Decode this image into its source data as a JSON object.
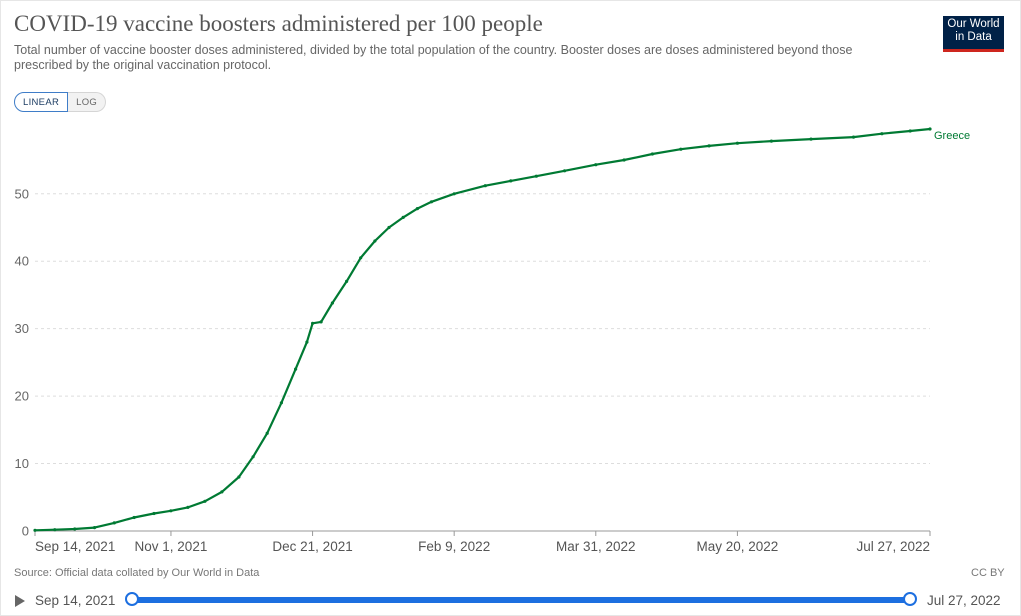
{
  "header": {
    "title": "COVID-19 vaccine boosters administered per 100 people",
    "subtitle": "Total number of vaccine booster doses administered, divided by the total population of the country. Booster doses are doses administered beyond those prescribed by the original vaccination protocol.",
    "logo_line1": "Our World",
    "logo_line2": "in Data"
  },
  "scale_toggle": {
    "linear_label": "LINEAR",
    "log_label": "LOG",
    "selected": "linear"
  },
  "footer": {
    "source": "Source: Official data collated by Our World in Data",
    "license": "CC BY"
  },
  "timeline": {
    "start_label": "Sep 14, 2021",
    "end_label": "Jul 27, 2022"
  },
  "colors": {
    "series": "#007a33",
    "grid": "#dddddd",
    "accent": "#1d6fe0",
    "logo_bg": "#002147",
    "logo_bar": "#ce261e"
  },
  "chart_data": {
    "type": "line",
    "title": "COVID-19 vaccine boosters administered per 100 people",
    "xlabel": "",
    "ylabel": "",
    "x_range": [
      "2021-09-14",
      "2022-07-27"
    ],
    "ylim": [
      0,
      59.6
    ],
    "y_ticks": [
      0,
      10,
      20,
      30,
      40,
      50
    ],
    "x_ticks": [
      {
        "date": "2021-09-14",
        "label": "Sep 14, 2021"
      },
      {
        "date": "2021-11-01",
        "label": "Nov 1, 2021"
      },
      {
        "date": "2021-12-21",
        "label": "Dec 21, 2021"
      },
      {
        "date": "2022-02-09",
        "label": "Feb 9, 2022"
      },
      {
        "date": "2022-03-31",
        "label": "Mar 31, 2022"
      },
      {
        "date": "2022-05-20",
        "label": "May 20, 2022"
      },
      {
        "date": "2022-07-27",
        "label": "Jul 27, 2022"
      }
    ],
    "grid": true,
    "series": [
      {
        "name": "Greece",
        "color": "#007a33",
        "points": [
          [
            "2021-09-14",
            0.1
          ],
          [
            "2021-09-21",
            0.2
          ],
          [
            "2021-09-28",
            0.3
          ],
          [
            "2021-10-05",
            0.5
          ],
          [
            "2021-10-12",
            1.2
          ],
          [
            "2021-10-19",
            2.0
          ],
          [
            "2021-10-26",
            2.6
          ],
          [
            "2021-11-01",
            3.0
          ],
          [
            "2021-11-07",
            3.5
          ],
          [
            "2021-11-13",
            4.4
          ],
          [
            "2021-11-19",
            5.8
          ],
          [
            "2021-11-25",
            8.0
          ],
          [
            "2021-11-30",
            11.0
          ],
          [
            "2021-12-05",
            14.5
          ],
          [
            "2021-12-10",
            19.0
          ],
          [
            "2021-12-15",
            24.0
          ],
          [
            "2021-12-19",
            28.0
          ],
          [
            "2021-12-21",
            30.8
          ],
          [
            "2021-12-24",
            31.0
          ],
          [
            "2021-12-28",
            33.8
          ],
          [
            "2022-01-02",
            37.0
          ],
          [
            "2022-01-07",
            40.5
          ],
          [
            "2022-01-12",
            43.0
          ],
          [
            "2022-01-17",
            45.0
          ],
          [
            "2022-01-22",
            46.5
          ],
          [
            "2022-01-27",
            47.8
          ],
          [
            "2022-02-01",
            48.8
          ],
          [
            "2022-02-09",
            50.0
          ],
          [
            "2022-02-20",
            51.2
          ],
          [
            "2022-03-01",
            51.9
          ],
          [
            "2022-03-10",
            52.6
          ],
          [
            "2022-03-20",
            53.4
          ],
          [
            "2022-03-31",
            54.3
          ],
          [
            "2022-04-10",
            55.0
          ],
          [
            "2022-04-20",
            55.9
          ],
          [
            "2022-04-30",
            56.6
          ],
          [
            "2022-05-10",
            57.1
          ],
          [
            "2022-05-20",
            57.5
          ],
          [
            "2022-06-01",
            57.8
          ],
          [
            "2022-06-15",
            58.1
          ],
          [
            "2022-06-30",
            58.4
          ],
          [
            "2022-07-10",
            58.9
          ],
          [
            "2022-07-20",
            59.3
          ],
          [
            "2022-07-27",
            59.6
          ]
        ]
      }
    ]
  }
}
